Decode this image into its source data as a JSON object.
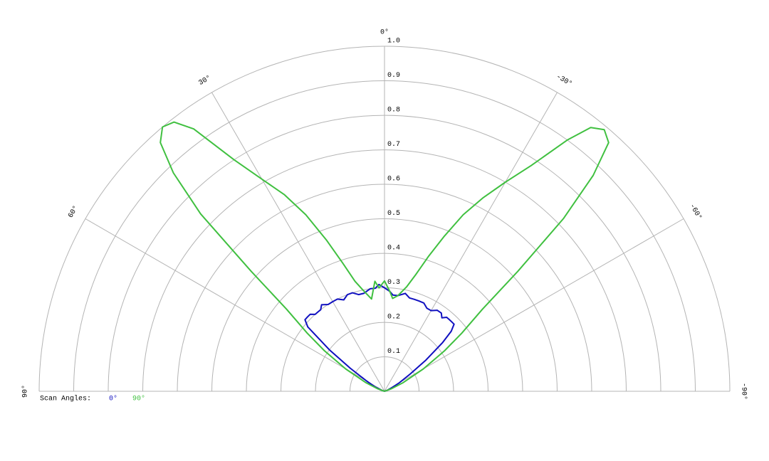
{
  "chart_data": {
    "type": "polar",
    "x": [
      90,
      80,
      70,
      65,
      60,
      56,
      53,
      50,
      48,
      46,
      44,
      42,
      40,
      38,
      36,
      33,
      30,
      27,
      24,
      21,
      18,
      15,
      12,
      8,
      5,
      3,
      0,
      -3,
      -5,
      -8,
      -12,
      -15,
      -18,
      -21,
      -24,
      -27,
      -30,
      -33,
      -36,
      -38,
      -40,
      -42,
      -44,
      -46,
      -48,
      -50,
      -53,
      -56,
      -60,
      -65,
      -70,
      -80,
      -90
    ],
    "series": [
      {
        "name": "0°",
        "color": "#1010c0",
        "values": [
          0,
          0,
          0.01,
          0.03,
          0.06,
          0.12,
          0.2,
          0.29,
          0.31,
          0.31,
          0.31,
          0.3,
          0.3,
          0.3,
          0.31,
          0.3,
          0.3,
          0.3,
          0.29,
          0.3,
          0.3,
          0.29,
          0.29,
          0.3,
          0.3,
          0.31,
          0.3,
          0.29,
          0.28,
          0.28,
          0.29,
          0.28,
          0.28,
          0.28,
          0.28,
          0.27,
          0.27,
          0.28,
          0.28,
          0.27,
          0.28,
          0.28,
          0.28,
          0.28,
          0.26,
          0.22,
          0.15,
          0.09,
          0.05,
          0.02,
          0.01,
          0,
          0
        ]
      },
      {
        "name": "90°",
        "color": "#40c040",
        "values": [
          0,
          0,
          0.02,
          0.06,
          0.13,
          0.21,
          0.28,
          0.37,
          0.52,
          0.74,
          0.88,
          0.97,
          1.0,
          0.99,
          0.94,
          0.8,
          0.71,
          0.64,
          0.56,
          0.47,
          0.39,
          0.33,
          0.3,
          0.27,
          0.32,
          0.3,
          0.32,
          0.29,
          0.27,
          0.28,
          0.31,
          0.35,
          0.41,
          0.48,
          0.56,
          0.63,
          0.7,
          0.78,
          0.9,
          0.97,
          0.99,
          0.97,
          0.87,
          0.72,
          0.52,
          0.37,
          0.28,
          0.21,
          0.13,
          0.06,
          0.02,
          0,
          0
        ]
      }
    ],
    "legend_title": "Scan Angles:",
    "xlim": [
      90,
      -90
    ],
    "xticks": [
      {
        "value": 90,
        "label": "90°"
      },
      {
        "value": 60,
        "label": "60°"
      },
      {
        "value": 30,
        "label": "30°"
      },
      {
        "value": 0,
        "label": "0°"
      },
      {
        "value": -30,
        "label": "-30°"
      },
      {
        "value": -60,
        "label": "-60°"
      },
      {
        "value": -90,
        "label": "-90°"
      }
    ],
    "ylim": [
      0,
      1
    ],
    "yticks": [
      0.1,
      0.2,
      0.3,
      0.4,
      0.5,
      0.6,
      0.7,
      0.8,
      0.9,
      {
        "value": 1,
        "label": "1.0"
      }
    ],
    "grid": true
  }
}
